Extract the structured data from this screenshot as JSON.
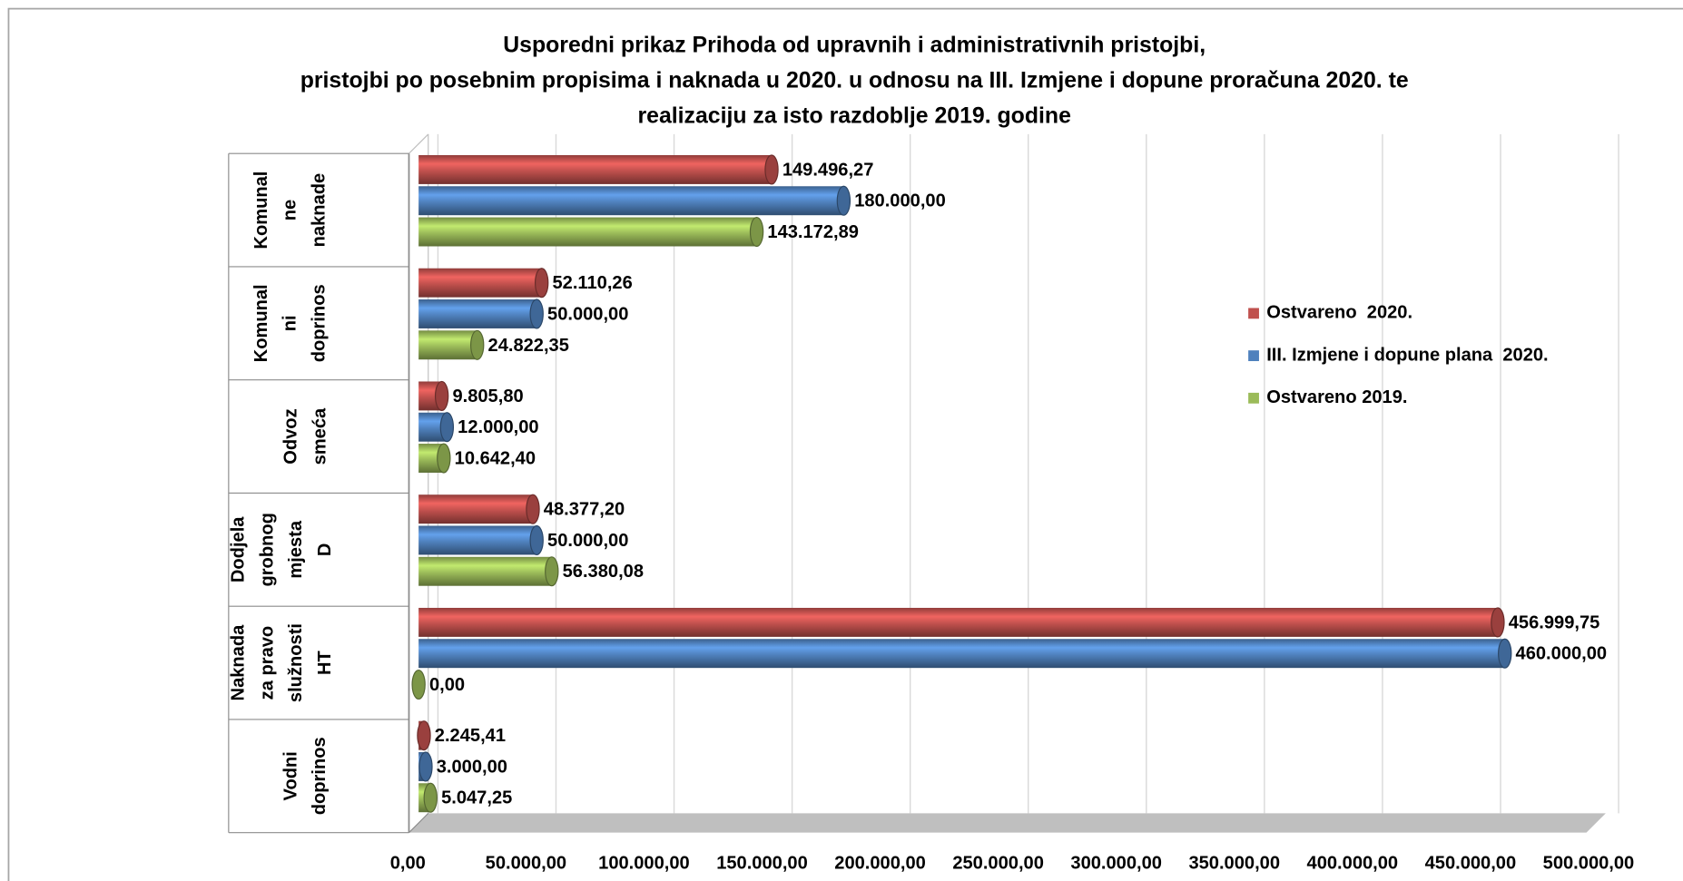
{
  "chart_data": {
    "type": "bar",
    "orientation": "horizontal",
    "title": [
      "Usporedni prikaz Prihoda od upravnih i administrativnih pristojbi,",
      "pristojbi po posebnim propisima i naknada u 2020. u odnosu na III. Izmjene i dopune proračuna 2020. te",
      "realizaciju za isto razdoblje 2019. godine"
    ],
    "categories": [
      [
        "Komunal",
        "ne",
        "naknade"
      ],
      [
        "Komunal",
        "ni",
        "doprinos"
      ],
      [
        "Odvoz",
        "smeća"
      ],
      [
        "Dodjela",
        "grobnog",
        "mjesta",
        "D"
      ],
      [
        "Naknada",
        "za pravo",
        "služnosti",
        "HT"
      ],
      [
        "Vodni",
        "doprinos"
      ]
    ],
    "series": [
      {
        "name": "Ostvareno  2020.",
        "color": "#c0504d",
        "values": [
          149496.27,
          52110.26,
          9805.8,
          48377.2,
          456999.75,
          2245.41
        ],
        "value_labels": [
          "149.496,27",
          "52.110,26",
          "9.805,80",
          "48.377,20",
          "456.999,75",
          "2.245,41"
        ]
      },
      {
        "name": "III. Izmjene i dopune plana  2020.",
        "color": "#4f81bd",
        "values": [
          180000,
          50000,
          12000,
          50000,
          460000,
          3000
        ],
        "value_labels": [
          "180.000,00",
          "50.000,00",
          "12.000,00",
          "50.000,00",
          "460.000,00",
          "3.000,00"
        ]
      },
      {
        "name": "Ostvareno 2019.",
        "color": "#9bbb59",
        "values": [
          143172.89,
          24822.35,
          10642.4,
          56380.08,
          0,
          5047.25
        ],
        "value_labels": [
          "143.172,89",
          "24.822,35",
          "10.642,40",
          "56.380,08",
          "0,00",
          "5.047,25"
        ]
      }
    ],
    "xlim": [
      0,
      500000
    ],
    "xticks": [
      {
        "value": 0,
        "label": "0,00"
      },
      {
        "value": 50000,
        "label": "50.000,00"
      },
      {
        "value": 100000,
        "label": "100.000,00"
      },
      {
        "value": 150000,
        "label": "150.000,00"
      },
      {
        "value": 200000,
        "label": "200.000,00"
      },
      {
        "value": 250000,
        "label": "250.000,00"
      },
      {
        "value": 300000,
        "label": "300.000,00"
      },
      {
        "value": 350000,
        "label": "350.000,00"
      },
      {
        "value": 400000,
        "label": "400.000,00"
      },
      {
        "value": 450000,
        "label": "450.000,00"
      },
      {
        "value": 500000,
        "label": "500.000,00"
      }
    ],
    "grid": true,
    "legend": "right"
  }
}
